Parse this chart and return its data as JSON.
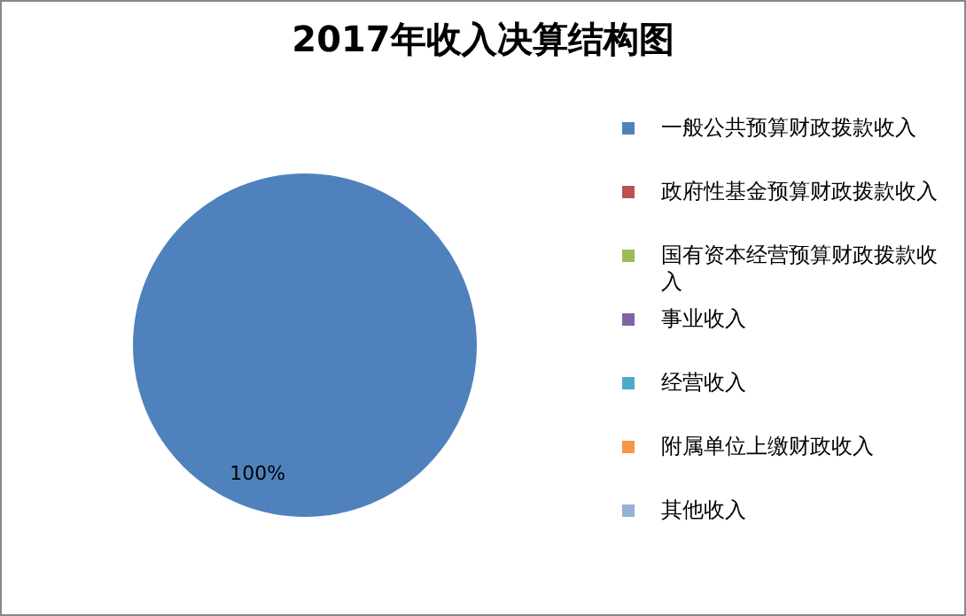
{
  "chart_data": {
    "type": "pie",
    "title": "2017年收入决算结构图",
    "categories": [
      "一般公共预算财政拨款收入",
      "政府性基金预算财政拨款收入",
      "国有资本经营预算财政拨款收入",
      "事业收入",
      "经营收入",
      "附属单位上缴财政收入",
      "其他收入"
    ],
    "values": [
      100,
      0,
      0,
      0,
      0,
      0,
      0
    ],
    "colors": [
      "#4f81bd",
      "#c0504d",
      "#9bbb59",
      "#8064a2",
      "#4bacc6",
      "#f79646",
      "#95b3d7"
    ],
    "value_labels": [
      "100%",
      null,
      null,
      null,
      null,
      null,
      null
    ],
    "legend": "right"
  }
}
